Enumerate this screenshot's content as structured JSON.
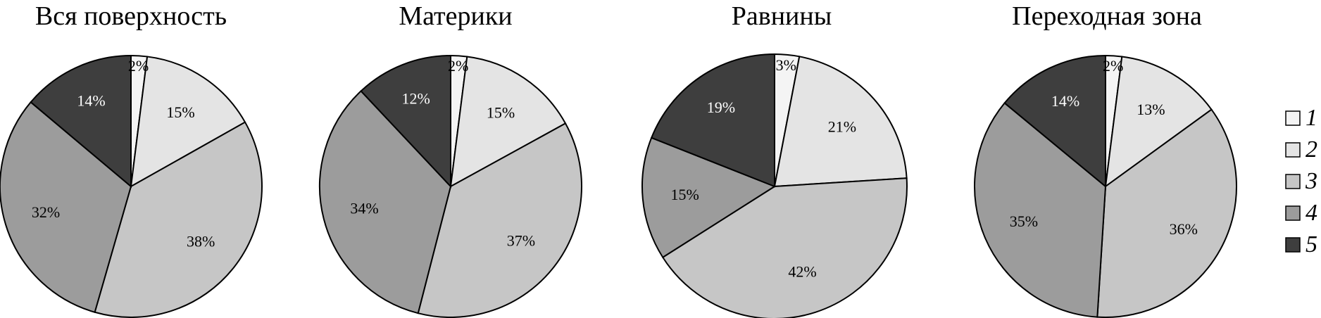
{
  "chart_data": [
    {
      "type": "pie",
      "title": "Вся поверхность",
      "categories": [
        "1",
        "2",
        "3",
        "4",
        "5"
      ],
      "values": [
        2,
        15,
        38,
        32,
        14
      ],
      "labels": [
        "2%",
        "15%",
        "38%",
        "32%",
        "14%"
      ]
    },
    {
      "type": "pie",
      "title": "Материки",
      "categories": [
        "1",
        "2",
        "3",
        "4",
        "5"
      ],
      "values": [
        2,
        15,
        37,
        34,
        12
      ],
      "labels": [
        "2%",
        "15%",
        "37%",
        "34%",
        "12%"
      ]
    },
    {
      "type": "pie",
      "title": "Равнины",
      "categories": [
        "1",
        "2",
        "3",
        "4",
        "5"
      ],
      "values": [
        3,
        21,
        42,
        15,
        19
      ],
      "labels": [
        "3%",
        "21%",
        "42%",
        "15%",
        "19%"
      ]
    },
    {
      "type": "pie",
      "title": "Переходная зона",
      "categories": [
        "1",
        "2",
        "3",
        "4",
        "5"
      ],
      "values": [
        2,
        13,
        36,
        35,
        14
      ],
      "labels": [
        "2%",
        "13%",
        "36%",
        "35%",
        "14%"
      ]
    }
  ],
  "legend": {
    "placement": "right",
    "items": [
      {
        "label": "1",
        "color": "#f4f4f4"
      },
      {
        "label": "2",
        "color": "#e4e4e4"
      },
      {
        "label": "3",
        "color": "#c6c6c6"
      },
      {
        "label": "4",
        "color": "#9c9c9c"
      },
      {
        "label": "5",
        "color": "#3e3e3e"
      }
    ]
  }
}
